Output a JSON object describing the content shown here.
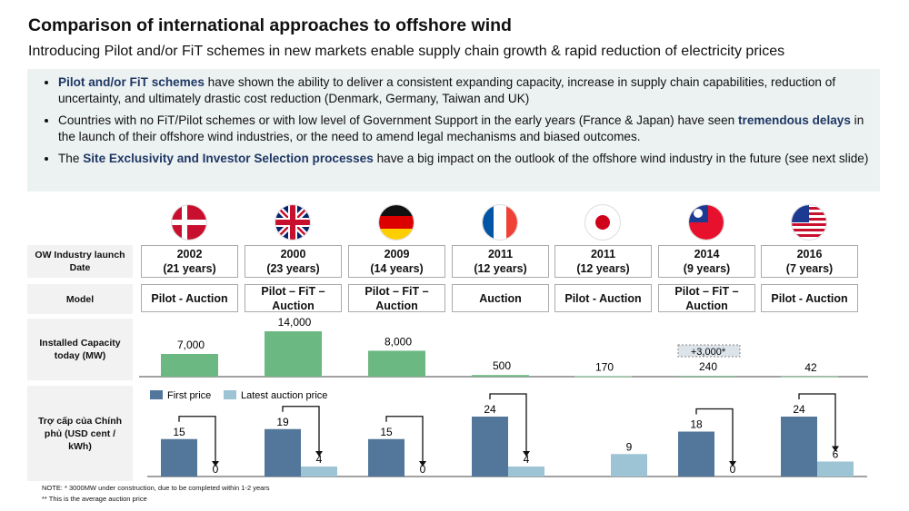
{
  "title": "Comparison of international approaches to offshore wind",
  "subtitle": "Introducing Pilot and/or FiT schemes in new markets enable supply chain growth & rapid reduction of electricity prices",
  "bullets": [
    {
      "hl": "Pilot and/or FiT schemes",
      "pre": "",
      "post": " have shown the ability to deliver a consistent expanding capacity, increase in supply chain capabilities, reduction of uncertainty, and ultimately drastic cost reduction (Denmark, Germany, Taiwan and UK)"
    },
    {
      "pre": "Countries with no FiT/Pilot schemes or with low level of Government Support in the early years (France & Japan) have seen ",
      "hl": "tremendous delays",
      "post": " in the launch of their offshore wind industries, or the need to amend legal mechanisms and biased outcomes."
    },
    {
      "pre": "The ",
      "hl": "Site Exclusivity and Investor Selection processes",
      "post": " have a big impact on the outlook of the offshore wind industry in the future (see next slide)"
    }
  ],
  "row_labels": {
    "launch": "OW Industry launch Date",
    "model": "Model",
    "capacity": "Installed Capacity today (MW)",
    "subsidy": "Trợ cấp của Chính phủ (USD cent / kWh)"
  },
  "countries": [
    {
      "flag": "denmark-flag",
      "year": "2002",
      "years": "(21 years)",
      "model": "Pilot - Auction"
    },
    {
      "flag": "uk-flag",
      "year": "2000",
      "years": "(23 years)",
      "model": "Pilot – FiT – Auction"
    },
    {
      "flag": "germany-flag",
      "year": "2009",
      "years": "(14 years)",
      "model": "Pilot – FiT – Auction"
    },
    {
      "flag": "france-flag",
      "year": "2011",
      "years": "(12 years)",
      "model": "Auction"
    },
    {
      "flag": "japan-flag",
      "year": "2011",
      "years": "(12 years)",
      "model": "Pilot - Auction"
    },
    {
      "flag": "taiwan-flag",
      "year": "2014",
      "years": "(9 years)",
      "model": "Pilot – FiT – Auction"
    },
    {
      "flag": "usa-flag",
      "year": "2016",
      "years": "(7 years)",
      "model": "Pilot - Auction"
    }
  ],
  "chart_data": [
    {
      "type": "bar",
      "title": "Installed Capacity today (MW)",
      "values": [
        7000,
        14000,
        8000,
        500,
        170,
        240,
        42
      ],
      "labels": [
        "7,000",
        "14,000",
        "8,000",
        "500",
        "170",
        "240",
        "42"
      ],
      "annotation": "+3,000*",
      "color": "#6cb882"
    },
    {
      "type": "bar",
      "legend": [
        "First price",
        "Latest auction price"
      ],
      "series": [
        {
          "name": "First price",
          "values": [
            15,
            19,
            15,
            24,
            null,
            18,
            24
          ],
          "color": "#52779a"
        },
        {
          "name": "Latest auction price",
          "values": [
            0,
            4,
            0,
            4,
            9,
            0,
            6
          ],
          "color": "#9dc4d4"
        }
      ]
    }
  ],
  "notes": [
    "NOTE: * 3000MW under construction, due to be completed within 1-2 years",
    "** This is the average auction price"
  ]
}
